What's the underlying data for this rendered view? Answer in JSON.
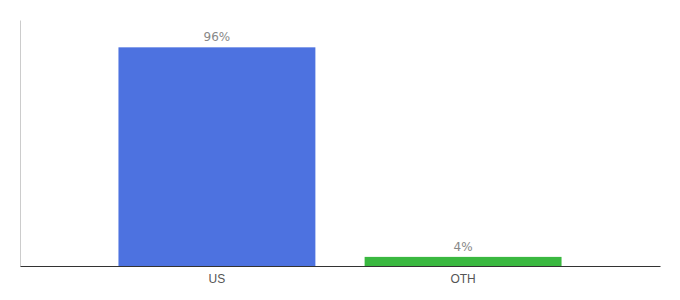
{
  "chart_data": {
    "type": "bar",
    "categories": [
      "US",
      "OTH"
    ],
    "values": [
      96,
      4
    ],
    "value_labels": [
      "96%",
      "4%"
    ],
    "colors": [
      "#4d72e0",
      "#3ab840"
    ],
    "ylim": [
      0,
      108
    ],
    "data_labels": true,
    "tick_labels": "x"
  }
}
